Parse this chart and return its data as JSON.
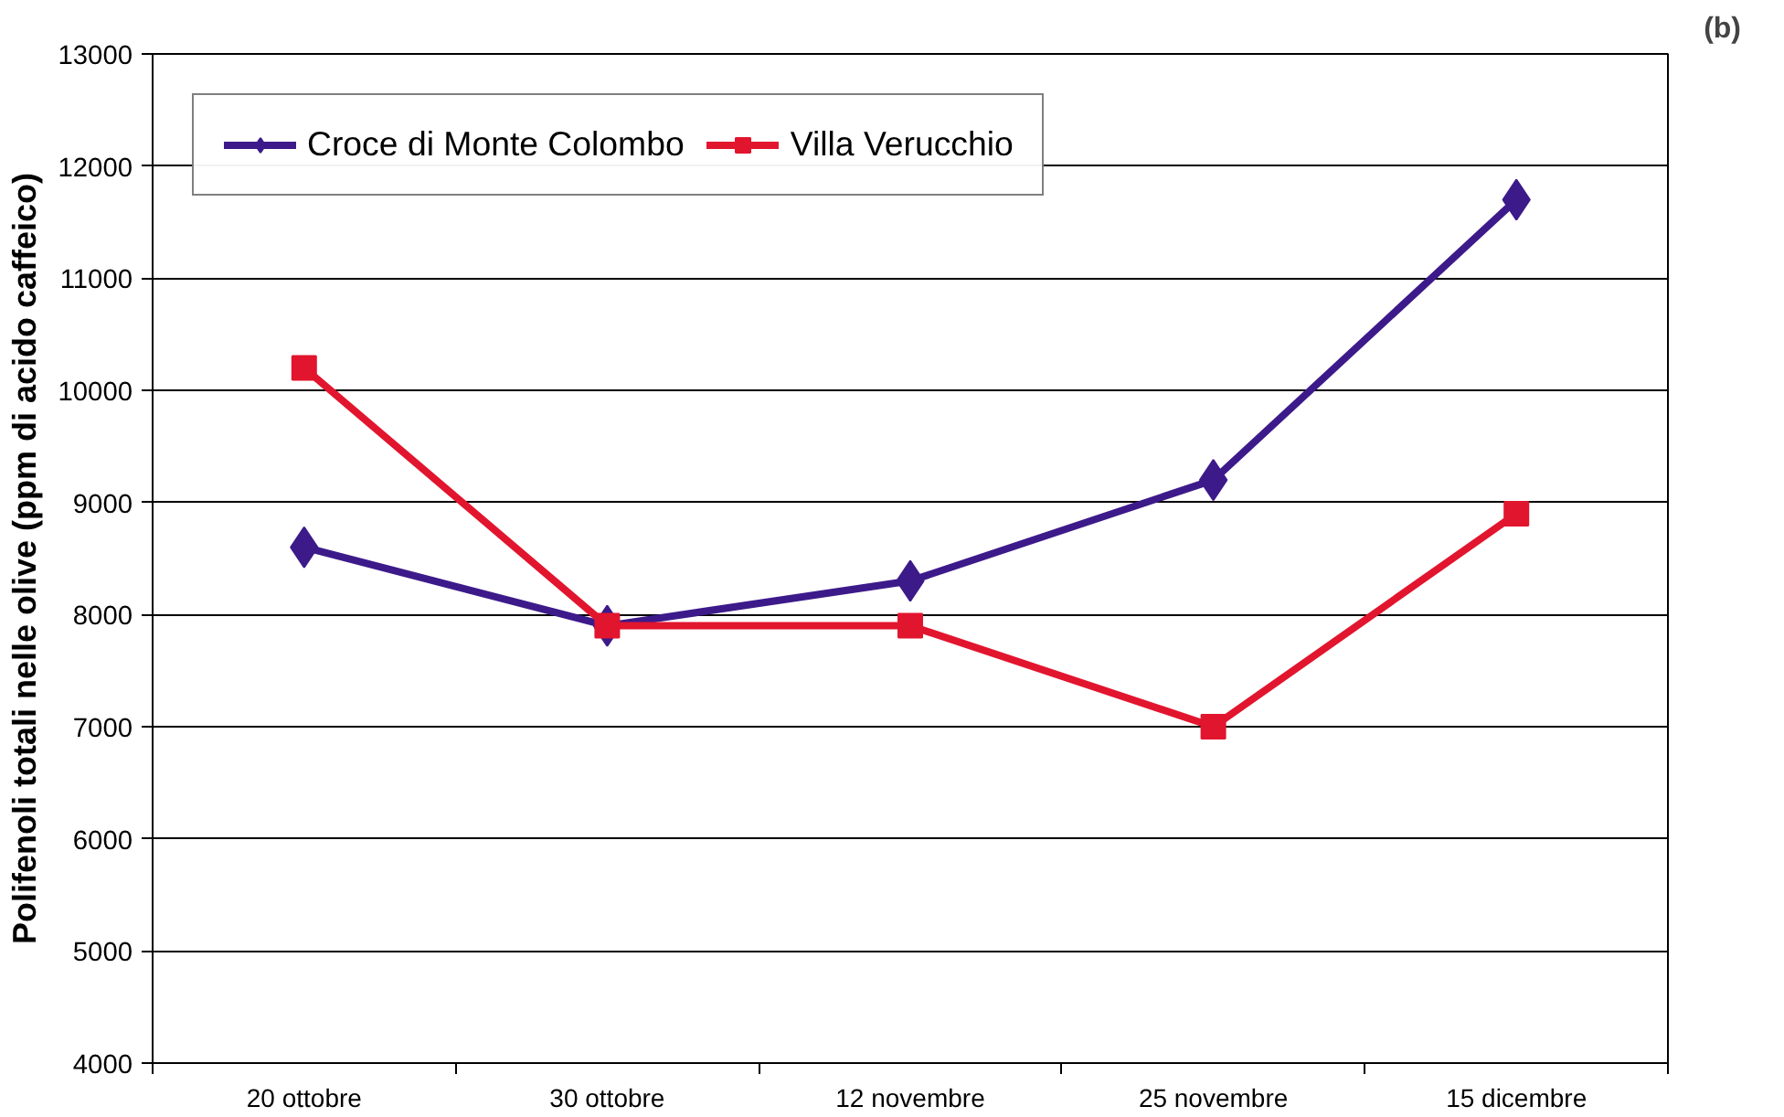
{
  "chart_data": {
    "type": "line",
    "ylabel": "Polifenoli totali nelle olive (ppm di acido caffeico)",
    "categories": [
      "20 ottobre",
      "30 ottobre",
      "12 novembre",
      "25 novembre",
      "15 dicembre"
    ],
    "series": [
      {
        "name": "Croce di Monte Colombo",
        "color": "#3d1a8a",
        "marker": "diamond",
        "values": [
          8600,
          7900,
          8300,
          9200,
          11700
        ]
      },
      {
        "name": "Villa Verucchio",
        "color": "#e2152e",
        "marker": "square",
        "values": [
          10200,
          7900,
          7900,
          7000,
          8900
        ]
      }
    ],
    "ylim": [
      4000,
      13000
    ],
    "yticks": [
      4000,
      5000,
      6000,
      7000,
      8000,
      9000,
      10000,
      11000,
      12000,
      13000
    ],
    "grid": "y",
    "legend": "top left",
    "line_style": "solid",
    "annotations": [
      "(b)"
    ]
  }
}
